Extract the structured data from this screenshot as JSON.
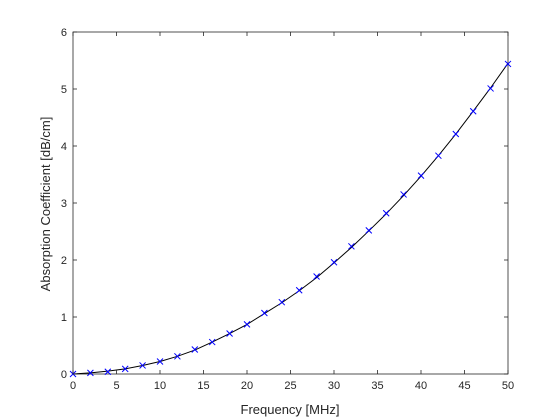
{
  "chart_data": {
    "type": "line",
    "xlabel": "Frequency [MHz]",
    "ylabel": "Absorption Coefficient [dB/cm]",
    "xlim": [
      0,
      50
    ],
    "ylim": [
      0,
      6
    ],
    "x_ticks": [
      0,
      5,
      10,
      15,
      20,
      25,
      30,
      35,
      40,
      45,
      50
    ],
    "y_ticks": [
      0,
      1,
      2,
      3,
      4,
      5,
      6
    ],
    "grid": false,
    "series": [
      {
        "kind": "line",
        "color": "#000000",
        "x": [
          0,
          2,
          4,
          6,
          8,
          10,
          12,
          14,
          16,
          18,
          20,
          22,
          24,
          26,
          28,
          30,
          32,
          34,
          36,
          38,
          40,
          42,
          44,
          46,
          48,
          50
        ],
        "values": [
          0,
          0.02,
          0.05,
          0.09,
          0.15,
          0.22,
          0.31,
          0.42,
          0.56,
          0.71,
          0.87,
          1.06,
          1.25,
          1.46,
          1.69,
          1.95,
          2.22,
          2.51,
          2.81,
          3.13,
          3.47,
          3.83,
          4.21,
          4.61,
          5.02,
          5.45
        ]
      },
      {
        "kind": "markers",
        "marker": "x",
        "color": "#0000ff",
        "x": [
          0,
          2,
          4,
          6,
          8,
          10,
          12,
          14,
          16,
          18,
          20,
          22,
          24,
          26,
          28,
          30,
          32,
          34,
          36,
          38,
          40,
          42,
          44,
          46,
          48,
          50
        ],
        "values": [
          0,
          0.02,
          0.04,
          0.09,
          0.15,
          0.22,
          0.31,
          0.43,
          0.56,
          0.71,
          0.87,
          1.07,
          1.26,
          1.47,
          1.71,
          1.96,
          2.24,
          2.52,
          2.82,
          3.15,
          3.48,
          3.83,
          4.21,
          4.61,
          5.01,
          5.44
        ]
      }
    ]
  }
}
